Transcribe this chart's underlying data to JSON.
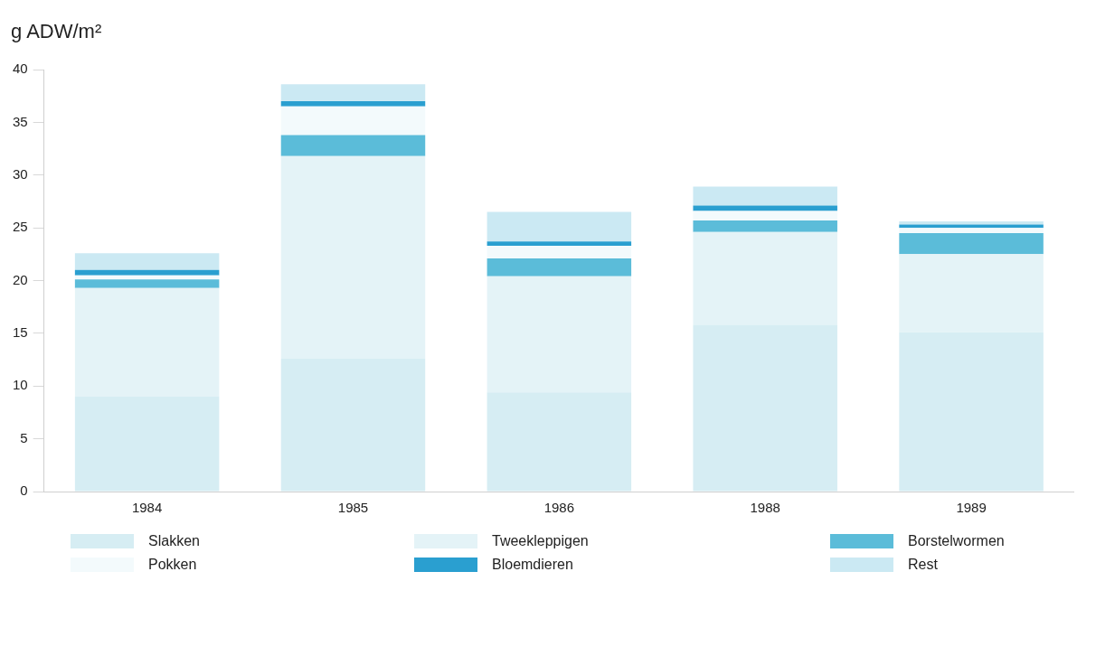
{
  "chart_data": {
    "type": "bar",
    "ylabel": "g ADW/m²",
    "categories": [
      "1984",
      "1985",
      "1986",
      "1988",
      "1989"
    ],
    "stacked": true,
    "ylim": [
      0,
      40
    ],
    "yticks": [
      0,
      5,
      10,
      15,
      20,
      25,
      30,
      35,
      40
    ],
    "grid": false,
    "legend": "bottom",
    "series": [
      {
        "name": "Slakken",
        "color": "#d6edf3",
        "values": [
          9.0,
          12.6,
          9.4,
          15.8,
          15.1
        ]
      },
      {
        "name": "Tweekleppigen",
        "color": "#e4f3f7",
        "values": [
          10.3,
          19.2,
          11.0,
          8.8,
          7.4
        ]
      },
      {
        "name": "Borstelwormen",
        "color": "#5bbcd9",
        "values": [
          0.8,
          2.0,
          1.7,
          1.1,
          2.0
        ]
      },
      {
        "name": "Pokken",
        "color": "#f3fafc",
        "values": [
          0.4,
          2.7,
          1.2,
          0.9,
          0.5
        ]
      },
      {
        "name": "Bloemdieren",
        "color": "#2a9fd0",
        "values": [
          0.5,
          0.5,
          0.4,
          0.5,
          0.3
        ]
      },
      {
        "name": "Rest",
        "color": "#cbe9f3",
        "values": [
          1.6,
          1.6,
          2.8,
          1.8,
          0.3
        ]
      }
    ]
  }
}
